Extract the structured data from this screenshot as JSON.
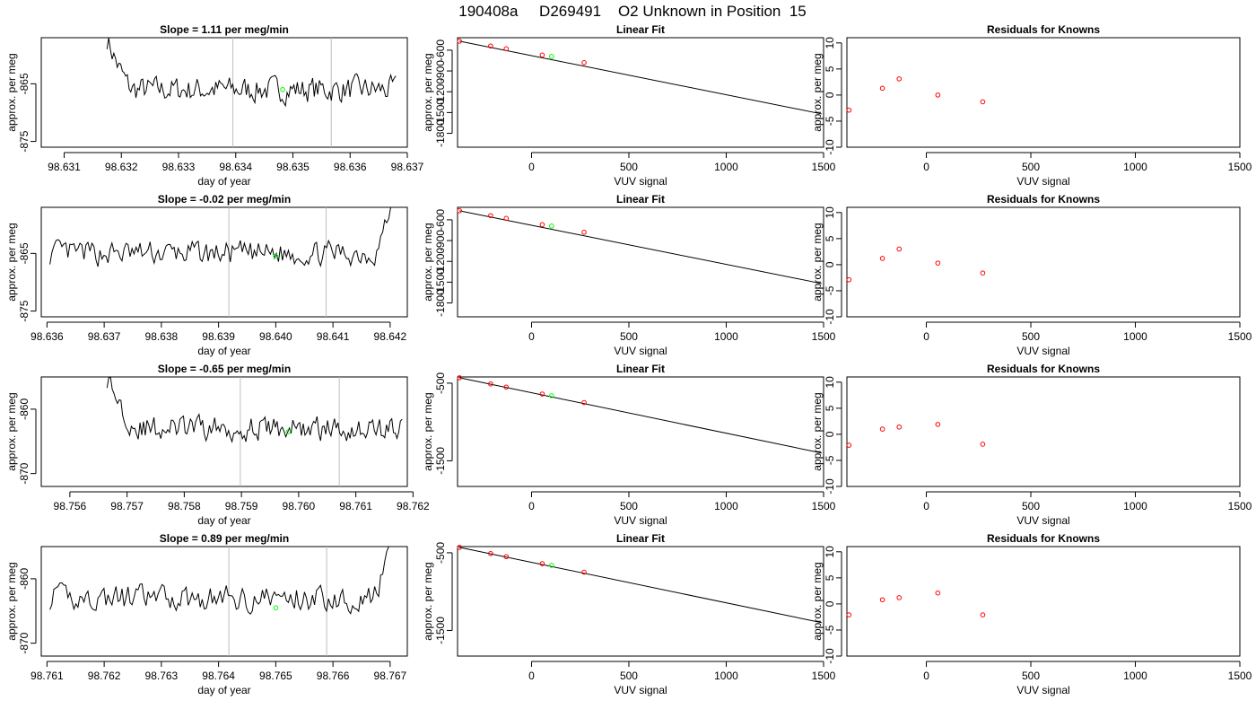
{
  "page_title": "190408a     D269491    O2 Unknown in Position  15",
  "colors": {
    "trace": "#000000",
    "known_points": "#ff0000",
    "unknown_point": "#00ff00",
    "marker_lines": "#bebebe",
    "axes": "#000000"
  },
  "fit_panel": {
    "title": "Linear Fit",
    "xlabel": "VUV signal",
    "ylabel": "approx. per meg",
    "xlim": [
      -380,
      1500
    ],
    "xticks": [
      0,
      500,
      1000,
      1500
    ],
    "xtick_labels": [
      "0",
      "500",
      "1000",
      "1500"
    ]
  },
  "resid_panel": {
    "title": "Residuals for Knowns",
    "xlabel": "VUV signal",
    "ylabel": "approx. per meg",
    "xlim": [
      -380,
      1500
    ],
    "ylim": [
      -10,
      11
    ],
    "xticks": [
      0,
      500,
      1000,
      1500
    ],
    "xtick_labels": [
      "0",
      "500",
      "1000",
      "1500"
    ],
    "yticks": [
      -10,
      -5,
      0,
      5,
      10
    ],
    "ytick_labels": [
      "-10",
      "-5",
      "0",
      "5",
      "10"
    ]
  },
  "time_panel": {
    "xlabel": "day of year",
    "ylabel": "approx. per meg"
  },
  "chart_data": [
    {
      "type": "line",
      "slope_label": "Slope =  1.11  per meg/min",
      "xlim": [
        98.6306,
        98.637
      ],
      "ylim": [
        -876,
        -857
      ],
      "xticks": [
        98.631,
        98.632,
        98.633,
        98.634,
        98.635,
        98.636,
        98.637
      ],
      "xtick_labels": [
        "98.631",
        "98.632",
        "98.633",
        "98.634",
        "98.635",
        "98.636",
        "98.637"
      ],
      "yticks": [
        -875,
        -865
      ],
      "ytick_labels": [
        "-875",
        "-865"
      ],
      "start_x": 98.63175,
      "end_x": 98.6368,
      "base": -866,
      "amplitude": 2.0,
      "seed": 7,
      "spike": "start",
      "spike_top": -857,
      "spike_len": 0.00045,
      "markers": [
        98.63395,
        98.63567
      ],
      "unknown_point": {
        "x": 98.63482,
        "y": -866
      },
      "fit": {
        "points": [
          {
            "x": -370,
            "y": -470
          },
          {
            "x": -210,
            "y": -540
          },
          {
            "x": -130,
            "y": -580
          },
          {
            "x": 55,
            "y": -670
          },
          {
            "x": 270,
            "y": -780
          }
        ],
        "unknown": {
          "x": 103,
          "y": -690
        },
        "line": [
          {
            "x": -370,
            "y": -470
          },
          {
            "x": 1490,
            "y": -1520
          }
        ],
        "ylim": [
          -2000,
          -420
        ],
        "yticks": [
          -1800,
          -1500,
          -1200,
          -900,
          -600
        ],
        "ytick_labels": [
          "-1800",
          "-1500",
          "-1200",
          "-900",
          "-600"
        ]
      },
      "residuals": [
        {
          "x": -370,
          "y": -2.9
        },
        {
          "x": -210,
          "y": 1.3
        },
        {
          "x": -130,
          "y": 3.1
        },
        {
          "x": 55,
          "y": 0.0
        },
        {
          "x": 270,
          "y": -1.3
        }
      ]
    },
    {
      "type": "line",
      "slope_label": "Slope =  -0.02  per meg/min",
      "xlim": [
        98.6359,
        98.6423
      ],
      "ylim": [
        -876,
        -857
      ],
      "xticks": [
        98.636,
        98.637,
        98.638,
        98.639,
        98.64,
        98.641,
        98.642
      ],
      "xtick_labels": [
        "98.636",
        "98.637",
        "98.638",
        "98.639",
        "98.640",
        "98.641",
        "98.642"
      ],
      "yticks": [
        -875,
        -865
      ],
      "ytick_labels": [
        "-875",
        "-865"
      ],
      "start_x": 98.63605,
      "end_x": 98.64201,
      "base": -865,
      "amplitude": 1.9,
      "seed": 13,
      "spike": "end",
      "spike_top": -857,
      "spike_len": 0.0003,
      "markers": [
        98.63918,
        98.64088
      ],
      "unknown_point": {
        "x": 98.64,
        "y": -865.5
      },
      "fit": {
        "points": [
          {
            "x": -370,
            "y": -470
          },
          {
            "x": -210,
            "y": -540
          },
          {
            "x": -130,
            "y": -580
          },
          {
            "x": 55,
            "y": -670
          },
          {
            "x": 270,
            "y": -780
          }
        ],
        "unknown": {
          "x": 103,
          "y": -690
        },
        "line": [
          {
            "x": -370,
            "y": -470
          },
          {
            "x": 1490,
            "y": -1520
          }
        ],
        "ylim": [
          -2000,
          -420
        ],
        "yticks": [
          -1800,
          -1500,
          -1200,
          -900,
          -600
        ],
        "ytick_labels": [
          "-1800",
          "-1500",
          "-1200",
          "-900",
          "-600"
        ]
      },
      "residuals": [
        {
          "x": -370,
          "y": -2.9
        },
        {
          "x": -210,
          "y": 1.2
        },
        {
          "x": -130,
          "y": 3.0
        },
        {
          "x": 55,
          "y": 0.3
        },
        {
          "x": 270,
          "y": -1.6
        }
      ]
    },
    {
      "type": "line",
      "slope_label": "Slope =  -0.65  per meg/min",
      "xlim": [
        98.7555,
        98.7619
      ],
      "ylim": [
        -872,
        -855
      ],
      "xticks": [
        98.756,
        98.757,
        98.758,
        98.759,
        98.76,
        98.761,
        98.762
      ],
      "xtick_labels": [
        "98.756",
        "98.757",
        "98.758",
        "98.759",
        "98.760",
        "98.761",
        "98.762"
      ],
      "yticks": [
        -870,
        -860
      ],
      "ytick_labels": [
        "-870",
        "-860"
      ],
      "start_x": 98.75665,
      "end_x": 98.76181,
      "base": -863,
      "amplitude": 1.7,
      "seed": 29,
      "spike": "start",
      "spike_top": -855,
      "spike_len": 0.00055,
      "markers": [
        98.75898,
        98.76071
      ],
      "unknown_point": {
        "x": 98.75982,
        "y": -863.5
      },
      "fit": {
        "points": [
          {
            "x": -370,
            "y": -430
          },
          {
            "x": -210,
            "y": -510
          },
          {
            "x": -130,
            "y": -550
          },
          {
            "x": 55,
            "y": -640
          },
          {
            "x": 270,
            "y": -750
          }
        ],
        "unknown": {
          "x": 103,
          "y": -662
        },
        "line": [
          {
            "x": -370,
            "y": -430
          },
          {
            "x": 1490,
            "y": -1400
          }
        ],
        "ylim": [
          -1830,
          -420
        ],
        "yticks": [
          -1500,
          -500
        ],
        "ytick_labels": [
          "-1500",
          "-500"
        ]
      },
      "residuals": [
        {
          "x": -370,
          "y": -2.1
        },
        {
          "x": -210,
          "y": 1.0
        },
        {
          "x": -130,
          "y": 1.4
        },
        {
          "x": 55,
          "y": 1.9
        },
        {
          "x": 270,
          "y": -1.9
        }
      ]
    },
    {
      "type": "line",
      "slope_label": "Slope =  0.89  per meg/min",
      "xlim": [
        98.7609,
        98.7673
      ],
      "ylim": [
        -872,
        -855
      ],
      "xticks": [
        98.761,
        98.762,
        98.763,
        98.764,
        98.765,
        98.766,
        98.767
      ],
      "xtick_labels": [
        "98.761",
        "98.762",
        "98.763",
        "98.764",
        "98.765",
        "98.766",
        "98.767"
      ],
      "yticks": [
        -870,
        -860
      ],
      "ytick_labels": [
        "-870",
        "-860"
      ],
      "start_x": 98.76105,
      "end_x": 98.76701,
      "base": -863,
      "amplitude": 1.8,
      "seed": 41,
      "spike": "end",
      "spike_top": -855,
      "spike_len": 0.0003,
      "markers": [
        98.76418,
        98.76589
      ],
      "unknown_point": {
        "x": 98.765,
        "y": -864.5
      },
      "fit": {
        "points": [
          {
            "x": -370,
            "y": -430
          },
          {
            "x": -210,
            "y": -510
          },
          {
            "x": -130,
            "y": -550
          },
          {
            "x": 55,
            "y": -640
          },
          {
            "x": 270,
            "y": -750
          }
        ],
        "unknown": {
          "x": 103,
          "y": -662
        },
        "line": [
          {
            "x": -370,
            "y": -430
          },
          {
            "x": 1490,
            "y": -1400
          }
        ],
        "ylim": [
          -1830,
          -420
        ],
        "yticks": [
          -1500,
          -500
        ],
        "ytick_labels": [
          "-1500",
          "-500"
        ]
      },
      "residuals": [
        {
          "x": -370,
          "y": -2.1
        },
        {
          "x": -210,
          "y": 0.8
        },
        {
          "x": -130,
          "y": 1.2
        },
        {
          "x": 55,
          "y": 2.1
        },
        {
          "x": 270,
          "y": -2.1
        }
      ]
    }
  ]
}
